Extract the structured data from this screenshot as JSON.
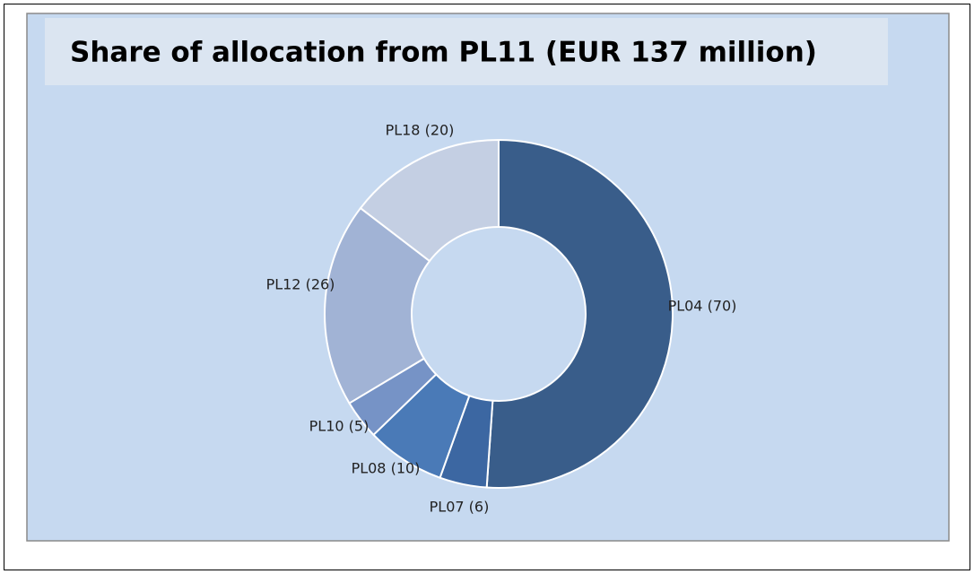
{
  "chart_data": {
    "type": "donut",
    "title": "Share of allocation from PL11 (EUR 137 million)",
    "values": [
      70,
      6,
      10,
      5,
      26,
      20
    ],
    "value_labels": [
      "PL04 (70)",
      "PL07 (6)",
      "PL08 (10)",
      "PL10 (5)",
      "PL12 (26)",
      "PL18 (20)"
    ],
    "colors": [
      "#395d8a",
      "#3c67a2",
      "#4a7ab7",
      "#7693c6",
      "#a1b3d5",
      "#c4cfe3"
    ]
  }
}
